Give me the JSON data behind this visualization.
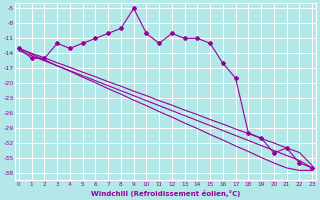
{
  "xlabel": "Windchill (Refroidissement éolien,°C)",
  "bg_color": "#b2e8e8",
  "grid_color": "#ffffff",
  "line_color": "#990099",
  "x": [
    0,
    1,
    2,
    3,
    4,
    5,
    6,
    7,
    8,
    9,
    10,
    11,
    12,
    13,
    14,
    15,
    16,
    17,
    18,
    19,
    20,
    21,
    22,
    23
  ],
  "y_main": [
    -13,
    -15,
    -15,
    -12,
    -13,
    -12,
    -11,
    -10,
    -9,
    -5,
    -10,
    -12,
    -10,
    -11,
    -11,
    -12,
    -16,
    -19,
    -30,
    -31,
    -34,
    -33,
    -36,
    -37
  ],
  "y_line1": [
    -13.0,
    -14.0,
    -14.9,
    -15.9,
    -16.8,
    -17.8,
    -18.7,
    -19.7,
    -20.6,
    -21.6,
    -22.5,
    -23.5,
    -24.4,
    -25.4,
    -26.3,
    -27.3,
    -28.2,
    -29.2,
    -30.1,
    -31.1,
    -32.0,
    -33.0,
    -33.9,
    -36.5
  ],
  "y_line2": [
    -13.0,
    -14.2,
    -15.3,
    -16.5,
    -17.6,
    -18.8,
    -19.9,
    -21.1,
    -22.2,
    -23.4,
    -24.5,
    -25.7,
    -26.8,
    -28.0,
    -29.1,
    -30.3,
    -31.4,
    -32.6,
    -33.7,
    -34.9,
    -36.0,
    -37.0,
    -37.5,
    -37.5
  ],
  "y_line3": [
    -13.5,
    -14.5,
    -15.5,
    -16.5,
    -17.5,
    -18.5,
    -19.5,
    -20.5,
    -21.5,
    -22.5,
    -23.5,
    -24.5,
    -25.5,
    -26.5,
    -27.5,
    -28.5,
    -29.5,
    -30.5,
    -31.5,
    -32.5,
    -33.5,
    -34.5,
    -35.5,
    -37.0
  ],
  "yticks": [
    -5,
    -8,
    -11,
    -14,
    -17,
    -20,
    -23,
    -26,
    -29,
    -32,
    -35,
    -38
  ],
  "xticks": [
    0,
    1,
    2,
    3,
    4,
    5,
    6,
    7,
    8,
    9,
    10,
    11,
    12,
    13,
    14,
    15,
    16,
    17,
    18,
    19,
    20,
    21,
    22,
    23
  ],
  "ylim": [
    -39.5,
    -4.0
  ],
  "xlim": [
    -0.3,
    23.3
  ]
}
